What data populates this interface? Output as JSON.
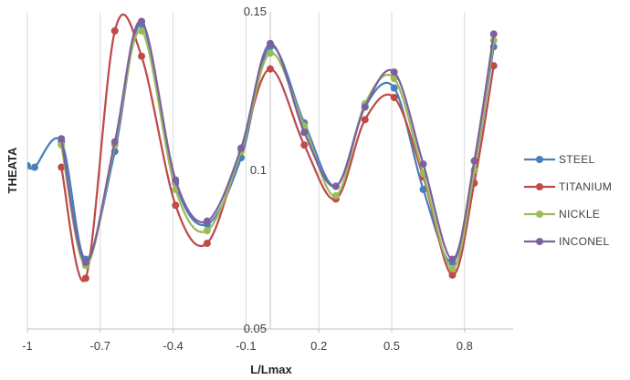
{
  "chart_data": {
    "type": "line",
    "xlabel": "L/Lmax",
    "ylabel": "THEATA",
    "xlim": [
      -1,
      1
    ],
    "ylim": [
      0.05,
      0.15
    ],
    "x_ticks": [
      "-1",
      "-0.7",
      "-0.4",
      "-0.1",
      "0.2",
      "0.5",
      "0.8"
    ],
    "x_tick_values": [
      -1,
      -0.7,
      -0.4,
      -0.1,
      0.2,
      0.5,
      0.8
    ],
    "y_ticks": [
      "0.05",
      "0.1",
      "0.15"
    ],
    "y_tick_values": [
      0.05,
      0.1,
      0.15
    ],
    "grid": "vertical lines",
    "legend_position": "right",
    "series": [
      {
        "name": "STEEL",
        "color": "#4a7ebb",
        "points": [
          [
            -1.0,
            0.1015
          ],
          [
            -0.97,
            0.101
          ],
          [
            -0.86,
            0.109
          ],
          [
            -0.76,
            0.072
          ],
          [
            -0.64,
            0.106
          ],
          [
            -0.53,
            0.146
          ],
          [
            -0.39,
            0.096
          ],
          [
            -0.26,
            0.083
          ],
          [
            -0.12,
            0.104
          ],
          [
            0.0,
            0.139
          ],
          [
            0.14,
            0.115
          ],
          [
            0.27,
            0.095
          ],
          [
            0.39,
            0.12
          ],
          [
            0.51,
            0.126
          ],
          [
            0.63,
            0.094
          ],
          [
            0.75,
            0.071
          ],
          [
            0.84,
            0.1
          ],
          [
            0.92,
            0.139
          ]
        ]
      },
      {
        "name": "TITANIUM",
        "color": "#be4b48",
        "points": [
          [
            -0.86,
            0.101
          ],
          [
            -0.76,
            0.066
          ],
          [
            -0.64,
            0.144
          ],
          [
            -0.53,
            0.136
          ],
          [
            -0.39,
            0.089
          ],
          [
            -0.26,
            0.077
          ],
          [
            -0.12,
            0.107
          ],
          [
            0.0,
            0.132
          ],
          [
            0.14,
            0.108
          ],
          [
            0.27,
            0.091
          ],
          [
            0.39,
            0.116
          ],
          [
            0.51,
            0.123
          ],
          [
            0.63,
            0.098
          ],
          [
            0.75,
            0.067
          ],
          [
            0.84,
            0.096
          ],
          [
            0.92,
            0.133
          ]
        ]
      },
      {
        "name": "NICKLE",
        "color": "#9bbb59",
        "points": [
          [
            -0.86,
            0.108
          ],
          [
            -0.76,
            0.07
          ],
          [
            -0.64,
            0.108
          ],
          [
            -0.53,
            0.144
          ],
          [
            -0.39,
            0.094
          ],
          [
            -0.26,
            0.081
          ],
          [
            -0.12,
            0.106
          ],
          [
            0.0,
            0.137
          ],
          [
            0.14,
            0.114
          ],
          [
            0.27,
            0.092
          ],
          [
            0.39,
            0.121
          ],
          [
            0.51,
            0.129
          ],
          [
            0.63,
            0.099
          ],
          [
            0.75,
            0.069
          ],
          [
            0.84,
            0.1
          ],
          [
            0.92,
            0.141
          ]
        ]
      },
      {
        "name": "INCONEL",
        "color": "#7d60a0",
        "points": [
          [
            -0.86,
            0.11
          ],
          [
            -0.76,
            0.071
          ],
          [
            -0.64,
            0.109
          ],
          [
            -0.53,
            0.147
          ],
          [
            -0.39,
            0.097
          ],
          [
            -0.26,
            0.084
          ],
          [
            -0.12,
            0.107
          ],
          [
            0.0,
            0.14
          ],
          [
            0.14,
            0.112
          ],
          [
            0.27,
            0.095
          ],
          [
            0.39,
            0.12
          ],
          [
            0.51,
            0.131
          ],
          [
            0.63,
            0.102
          ],
          [
            0.75,
            0.072
          ],
          [
            0.84,
            0.103
          ],
          [
            0.92,
            0.143
          ]
        ]
      }
    ]
  }
}
